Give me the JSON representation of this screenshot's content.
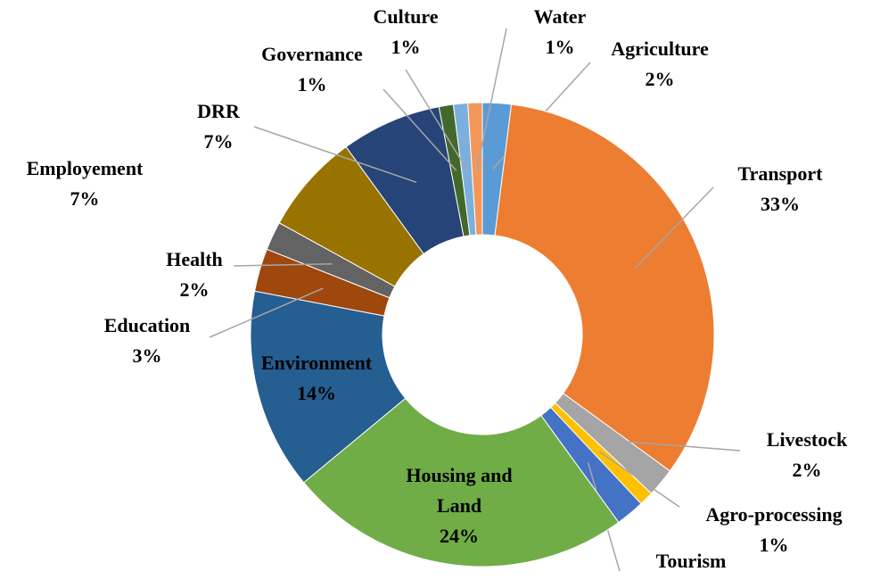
{
  "chart_data": {
    "type": "donut",
    "categories": [
      "Agriculture",
      "Transport",
      "Livestock",
      "Agro-processing",
      "Tourism",
      "Housing and Land",
      "Environment",
      "Education",
      "Health",
      "Employement",
      "DRR",
      "Governance",
      "Culture",
      "Water"
    ],
    "values": [
      2,
      33,
      2,
      1,
      2,
      24,
      14,
      3,
      2,
      7,
      7,
      1,
      1,
      1
    ],
    "value_labels": [
      "2%",
      "33%",
      "2%",
      "1%",
      null,
      "24%",
      "14%",
      "3%",
      "2%",
      "7%",
      "7%",
      "1%",
      "1%",
      "1%"
    ],
    "colors": [
      "#5b9bd5",
      "#ed7d31",
      "#a5a5a5",
      "#ffc000",
      "#4472c4",
      "#70ad47",
      "#255e91",
      "#9e480e",
      "#636363",
      "#997300",
      "#264478",
      "#43682b",
      "#7cafdd",
      "#f1975a"
    ]
  }
}
